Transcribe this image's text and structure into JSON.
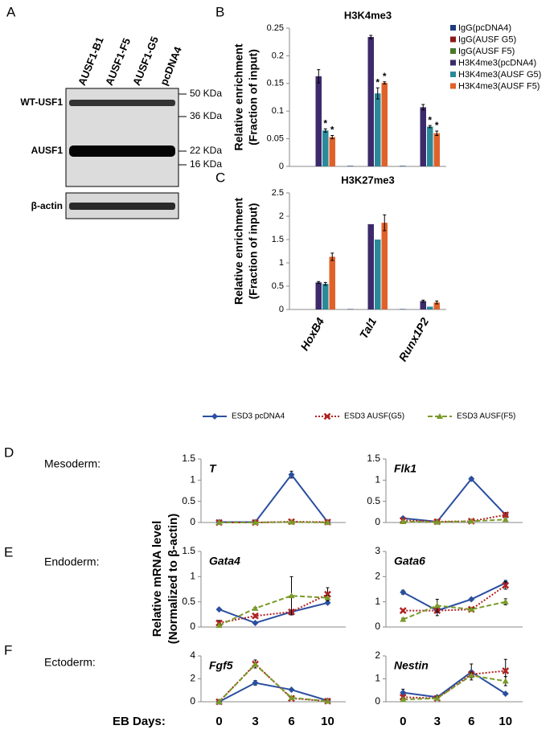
{
  "panel_labels": [
    "A",
    "B",
    "C",
    "D",
    "E",
    "F"
  ],
  "blot": {
    "lanes": [
      "AUSF1-B1",
      "AUSF1-F5",
      "AUSF1-G5",
      "pcDNA4"
    ],
    "markers": [
      "50 KDa",
      "36 KDa",
      "22 KDa",
      "16 KDa"
    ],
    "rows": [
      "WT-USF1",
      "AUSF1",
      "β-actin"
    ]
  },
  "germ_layers": [
    "Mesoderm:",
    "Endoderm:",
    "Ectoderm:"
  ],
  "x_axis_label": "EB Days:",
  "mrna_ylabel": [
    "Relative  mRNA level",
    "(Normalized to β-actin)"
  ],
  "chart_data": [
    {
      "type": "bar",
      "title": "H3K4me3",
      "ylabel": [
        "Relative enrichment",
        "(Fraction of input)"
      ],
      "categories": [
        null,
        null,
        null
      ],
      "ylim": [
        0,
        0.25
      ],
      "yticks": [
        0,
        0.05,
        0.1,
        0.15,
        0.2,
        0.25
      ],
      "legend": "right",
      "series": [
        {
          "name": "IgG(pcDNA4)",
          "color": "#1f3d7a",
          "values": [
            0,
            0.001,
            0.001
          ],
          "errors": [
            0,
            0,
            0
          ]
        },
        {
          "name": "IgG(AUSF G5)",
          "color": "#8b1a1a",
          "values": [
            0,
            0,
            0
          ],
          "errors": [
            0,
            0,
            0
          ]
        },
        {
          "name": "IgG(AUSF F5)",
          "color": "#4a7a2a",
          "values": [
            0,
            0,
            0
          ],
          "errors": [
            0,
            0,
            0
          ]
        },
        {
          "name": "H3K4me3(pcDNA4)",
          "color": "#3d2a6b",
          "values": [
            0.163,
            0.234,
            0.107
          ],
          "errors": [
            0.012,
            0.003,
            0.005
          ]
        },
        {
          "name": "H3K4me3(AUSF G5)",
          "color": "#2a8a9a",
          "values": [
            0.065,
            0.132,
            0.072
          ],
          "errors": [
            0.003,
            0.01,
            0.002
          ]
        },
        {
          "name": "H3K4me3(AUSF F5)",
          "color": "#e0622a",
          "values": [
            0.053,
            0.151,
            0.06
          ],
          "errors": [
            0.003,
            0.002,
            0.004
          ]
        }
      ],
      "annotations": [
        {
          "text": "*",
          "series": 4,
          "category": 0
        },
        {
          "text": "*",
          "series": 5,
          "category": 0
        },
        {
          "text": "*",
          "series": 4,
          "category": 1
        },
        {
          "text": "*",
          "series": 5,
          "category": 1
        },
        {
          "text": "*",
          "series": 4,
          "category": 2
        },
        {
          "text": "*",
          "series": 5,
          "category": 2
        }
      ]
    },
    {
      "type": "bar",
      "title": "H3K27me3",
      "ylabel": [
        "Relative enrichment",
        "(Fraction of input)"
      ],
      "categories": [
        "HoxB4",
        "Tal1",
        "Runx1P2"
      ],
      "ylim": [
        0,
        2.5
      ],
      "yticks": [
        0,
        0.5,
        1,
        1.5,
        2,
        2.5
      ],
      "series": [
        {
          "color": "#1f3d7a",
          "values": [
            0,
            0.01,
            0.01
          ],
          "errors": [
            0,
            0,
            0
          ]
        },
        {
          "color": "#8b1a1a",
          "values": [
            0,
            0,
            0
          ],
          "errors": [
            0,
            0,
            0
          ]
        },
        {
          "color": "#4a7a2a",
          "values": [
            0,
            0,
            0
          ],
          "errors": [
            0,
            0,
            0
          ]
        },
        {
          "color": "#3d2a6b",
          "values": [
            0.58,
            1.83,
            0.18
          ],
          "errors": [
            0.02,
            0,
            0.02
          ]
        },
        {
          "color": "#2a8a9a",
          "values": [
            0.55,
            1.5,
            0.06
          ],
          "errors": [
            0.03,
            0,
            0
          ]
        },
        {
          "color": "#e0622a",
          "values": [
            1.13,
            1.86,
            0.15
          ],
          "errors": [
            0.08,
            0.17,
            0.03
          ]
        }
      ]
    },
    {
      "type": "line",
      "title": "T",
      "categories": [
        null,
        null,
        null,
        null
      ],
      "ylim": [
        0,
        1.5
      ],
      "yticks": [
        0,
        0.5,
        1,
        1.5
      ],
      "legend": "top",
      "series": [
        {
          "name": "ESD3 pcDNA4",
          "color": "#2a4fa0",
          "marker": "diamond",
          "dash": "solid",
          "values": [
            0.01,
            0.01,
            1.13,
            0.01
          ],
          "errors": [
            0,
            0,
            0.08,
            0
          ]
        },
        {
          "name": "ESD3 AUSF(G5)",
          "color": "#b22222",
          "marker": "x",
          "dash": "dotted",
          "values": [
            0,
            0,
            0.02,
            0.01
          ],
          "errors": [
            0,
            0,
            0,
            0
          ]
        },
        {
          "name": "ESD3 AUSF(F5)",
          "color": "#7a9a2a",
          "marker": "triangle",
          "dash": "dashed",
          "values": [
            0,
            0,
            0.01,
            0
          ],
          "errors": [
            0,
            0,
            0,
            0
          ]
        }
      ]
    },
    {
      "type": "line",
      "title": "Flk1",
      "categories": [
        null,
        null,
        null,
        null
      ],
      "ylim": [
        0,
        1.5
      ],
      "yticks": [
        0,
        0.5,
        1,
        1.5
      ],
      "series": [
        {
          "color": "#2a4fa0",
          "marker": "diamond",
          "dash": "solid",
          "values": [
            0.1,
            0.02,
            1.03,
            0.18
          ],
          "errors": [
            0.03,
            0,
            0.04,
            0.03
          ]
        },
        {
          "color": "#b22222",
          "marker": "x",
          "dash": "dotted",
          "values": [
            0.05,
            0.02,
            0.03,
            0.18
          ],
          "errors": [
            0.02,
            0.01,
            0.01,
            0.05
          ]
        },
        {
          "color": "#7a9a2a",
          "marker": "triangle",
          "dash": "dashed",
          "values": [
            0.02,
            0.01,
            0.03,
            0.07
          ],
          "errors": [
            0,
            0,
            0,
            0.02
          ]
        }
      ]
    },
    {
      "type": "line",
      "title": "Gata4",
      "categories": [
        null,
        null,
        null,
        null
      ],
      "ylim": [
        0,
        1.5
      ],
      "yticks": [
        0,
        0.5,
        1,
        1.5
      ],
      "series": [
        {
          "color": "#2a4fa0",
          "marker": "diamond",
          "dash": "solid",
          "values": [
            0.35,
            0.08,
            0.3,
            0.48
          ],
          "errors": [
            0,
            0,
            0,
            0
          ]
        },
        {
          "color": "#b22222",
          "marker": "x",
          "dash": "dotted",
          "values": [
            0.08,
            0.22,
            0.3,
            0.65
          ],
          "errors": [
            0.05,
            0.03,
            0.03,
            0.13
          ]
        },
        {
          "color": "#7a9a2a",
          "marker": "triangle",
          "dash": "dashed",
          "values": [
            0.03,
            0.37,
            0.62,
            0.58
          ],
          "errors": [
            0.02,
            0.02,
            0.38,
            0.05
          ]
        }
      ]
    },
    {
      "type": "line",
      "title": "Gata6",
      "categories": [
        null,
        null,
        null,
        null
      ],
      "ylim": [
        0,
        3
      ],
      "yticks": [
        0,
        1,
        2,
        3
      ],
      "series": [
        {
          "color": "#2a4fa0",
          "marker": "diamond",
          "dash": "solid",
          "values": [
            1.38,
            0.65,
            1.1,
            1.75
          ],
          "errors": [
            0.08,
            0.2,
            0.05,
            0.1
          ]
        },
        {
          "color": "#b22222",
          "marker": "x",
          "dash": "dotted",
          "values": [
            0.65,
            0.65,
            0.7,
            1.65
          ],
          "errors": [
            0.05,
            0.05,
            0.05,
            0.15
          ]
        },
        {
          "color": "#7a9a2a",
          "marker": "triangle",
          "dash": "dashed",
          "values": [
            0.3,
            0.85,
            0.7,
            1.0
          ],
          "errors": [
            0.05,
            0.25,
            0.05,
            0.12
          ]
        }
      ]
    },
    {
      "type": "line",
      "title": "Fgf5",
      "categories": [
        "0",
        "3",
        "6",
        "10"
      ],
      "ylim": [
        0,
        4
      ],
      "yticks": [
        0,
        2,
        4
      ],
      "series": [
        {
          "color": "#2a4fa0",
          "marker": "diamond",
          "dash": "solid",
          "values": [
            0,
            1.65,
            1.05,
            0.1
          ],
          "errors": [
            0,
            0.2,
            0.05,
            0
          ]
        },
        {
          "color": "#b22222",
          "marker": "x",
          "dash": "dotted",
          "values": [
            0,
            3.3,
            0.3,
            0.05
          ],
          "errors": [
            0,
            0.35,
            0.05,
            0
          ]
        },
        {
          "color": "#7a9a2a",
          "marker": "triangle",
          "dash": "dashed",
          "values": [
            0,
            3.25,
            0.35,
            0.05
          ],
          "errors": [
            0,
            0,
            0,
            0
          ]
        }
      ]
    },
    {
      "type": "line",
      "title": "Nestin",
      "categories": [
        "0",
        "3",
        "6",
        "10"
      ],
      "ylim": [
        0,
        2
      ],
      "yticks": [
        0,
        1,
        2
      ],
      "series": [
        {
          "color": "#2a4fa0",
          "marker": "diamond",
          "dash": "solid",
          "values": [
            0.4,
            0.2,
            1.3,
            0.35
          ],
          "errors": [
            0.15,
            0.05,
            0.35,
            0
          ]
        },
        {
          "color": "#b22222",
          "marker": "x",
          "dash": "dotted",
          "values": [
            0.2,
            0.15,
            1.2,
            1.35
          ],
          "errors": [
            0.05,
            0.05,
            0.1,
            0.5
          ]
        },
        {
          "color": "#7a9a2a",
          "marker": "triangle",
          "dash": "dashed",
          "values": [
            0.1,
            0.15,
            1.15,
            0.9
          ],
          "errors": [
            0.05,
            0.05,
            0.1,
            0.2
          ]
        }
      ]
    }
  ]
}
